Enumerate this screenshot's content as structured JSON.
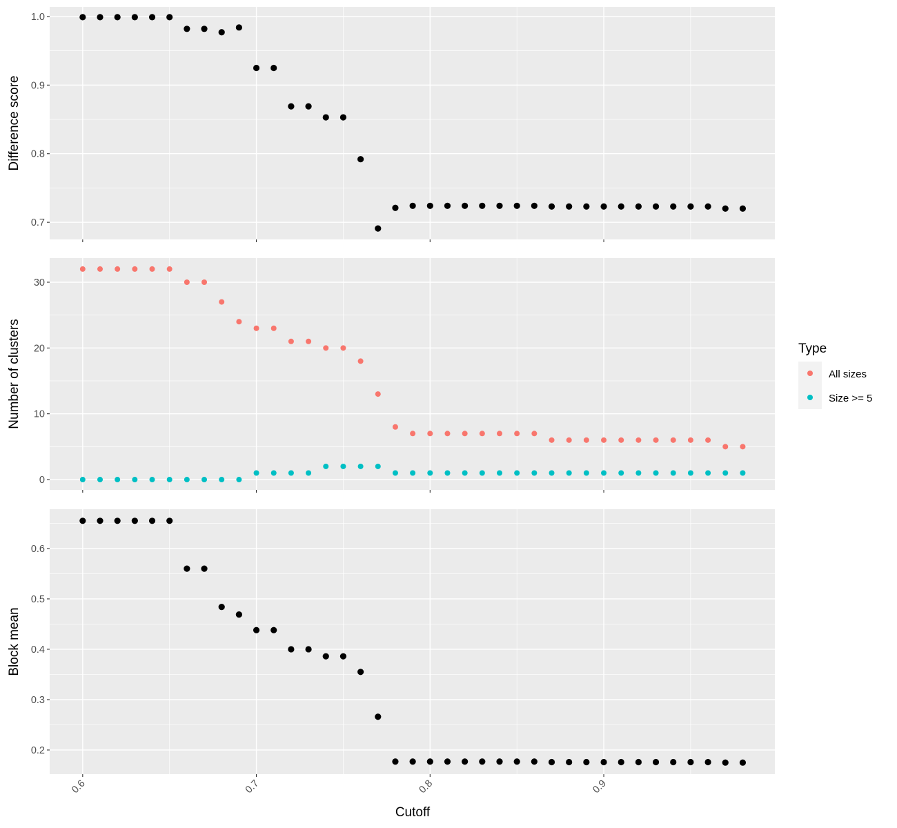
{
  "chart_data": [
    {
      "type": "scatter",
      "ylabel": "Difference score",
      "xlim": [
        0.581,
        0.9985
      ],
      "ylim": [
        0.675,
        1.014
      ],
      "yticks": [
        "0.7",
        "0.8",
        "0.9",
        "1.0"
      ],
      "x": [
        0.6,
        0.61,
        0.62,
        0.63,
        0.64,
        0.65,
        0.66,
        0.67,
        0.68,
        0.69,
        0.7,
        0.71,
        0.72,
        0.73,
        0.74,
        0.75,
        0.76,
        0.77,
        0.78,
        0.79,
        0.8,
        0.81,
        0.82,
        0.83,
        0.84,
        0.85,
        0.86,
        0.87,
        0.88,
        0.89,
        0.9,
        0.91,
        0.92,
        0.93,
        0.94,
        0.95,
        0.96,
        0.97,
        0.98
      ],
      "series": [
        {
          "color": "#000000",
          "values": [
            0.999,
            0.999,
            0.999,
            0.999,
            0.999,
            0.999,
            0.982,
            0.982,
            0.977,
            0.984,
            0.925,
            0.925,
            0.869,
            0.869,
            0.853,
            0.853,
            0.792,
            0.691,
            0.721,
            0.724,
            0.724,
            0.724,
            0.724,
            0.724,
            0.724,
            0.724,
            0.724,
            0.723,
            0.723,
            0.723,
            0.723,
            0.723,
            0.723,
            0.723,
            0.723,
            0.723,
            0.723,
            0.72,
            0.72
          ]
        }
      ]
    },
    {
      "type": "scatter",
      "ylabel": "Number of clusters",
      "xlim": [
        0.581,
        0.9985
      ],
      "ylim": [
        -1.57,
        33.67
      ],
      "yticks": [
        "0",
        "10",
        "20",
        "30"
      ],
      "x": [
        0.6,
        0.61,
        0.62,
        0.63,
        0.64,
        0.65,
        0.66,
        0.67,
        0.68,
        0.69,
        0.7,
        0.71,
        0.72,
        0.73,
        0.74,
        0.75,
        0.76,
        0.77,
        0.78,
        0.79,
        0.8,
        0.81,
        0.82,
        0.83,
        0.84,
        0.85,
        0.86,
        0.87,
        0.88,
        0.89,
        0.9,
        0.91,
        0.92,
        0.93,
        0.94,
        0.95,
        0.96,
        0.97,
        0.98
      ],
      "series": [
        {
          "name": "All sizes",
          "color": "#F8766D",
          "values": [
            32,
            32,
            32,
            32,
            32,
            32,
            30,
            30,
            27,
            24,
            23,
            23,
            21,
            21,
            20,
            20,
            18,
            13,
            8,
            7,
            7,
            7,
            7,
            7,
            7,
            7,
            7,
            6,
            6,
            6,
            6,
            6,
            6,
            6,
            6,
            6,
            6,
            5,
            5
          ]
        },
        {
          "name": "Size >= 5",
          "color": "#00BFC4",
          "values": [
            0,
            0,
            0,
            0,
            0,
            0,
            0,
            0,
            0,
            0,
            1,
            1,
            1,
            1,
            2,
            2,
            2,
            2,
            1,
            1,
            1,
            1,
            1,
            1,
            1,
            1,
            1,
            1,
            1,
            1,
            1,
            1,
            1,
            1,
            1,
            1,
            1,
            1,
            1
          ]
        }
      ]
    },
    {
      "type": "scatter",
      "ylabel": "Block mean",
      "xlim": [
        0.581,
        0.9985
      ],
      "ylim": [
        0.152,
        0.678
      ],
      "yticks": [
        "0.2",
        "0.3",
        "0.4",
        "0.5",
        "0.6"
      ],
      "x": [
        0.6,
        0.61,
        0.62,
        0.63,
        0.64,
        0.65,
        0.66,
        0.67,
        0.68,
        0.69,
        0.7,
        0.71,
        0.72,
        0.73,
        0.74,
        0.75,
        0.76,
        0.77,
        0.78,
        0.79,
        0.8,
        0.81,
        0.82,
        0.83,
        0.84,
        0.85,
        0.86,
        0.87,
        0.88,
        0.89,
        0.9,
        0.91,
        0.92,
        0.93,
        0.94,
        0.95,
        0.96,
        0.97,
        0.98
      ],
      "series": [
        {
          "color": "#000000",
          "values": [
            0.655,
            0.655,
            0.655,
            0.655,
            0.655,
            0.655,
            0.56,
            0.56,
            0.484,
            0.469,
            0.438,
            0.438,
            0.4,
            0.4,
            0.386,
            0.386,
            0.355,
            0.266,
            0.177,
            0.177,
            0.177,
            0.177,
            0.177,
            0.177,
            0.177,
            0.177,
            0.177,
            0.176,
            0.176,
            0.176,
            0.176,
            0.176,
            0.176,
            0.176,
            0.176,
            0.176,
            0.176,
            0.175,
            0.175
          ]
        }
      ]
    }
  ],
  "xaxis": {
    "label": "Cutoff",
    "ticks": [
      "0.6",
      "0.7",
      "0.8",
      "0.9"
    ]
  },
  "legend": {
    "title": "Type",
    "items": [
      "All sizes",
      "Size >= 5"
    ]
  }
}
